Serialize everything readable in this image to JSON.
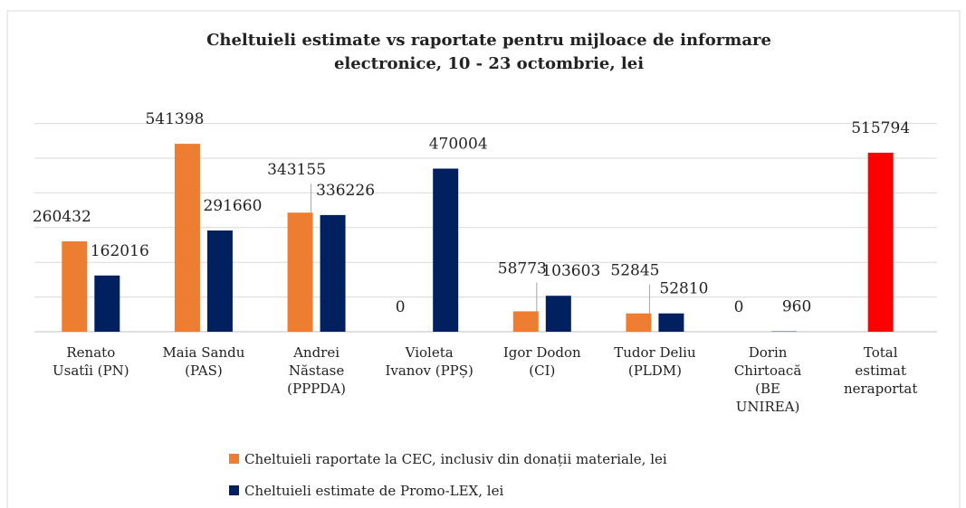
{
  "chart_data": {
    "type": "bar",
    "title": "Cheltuieli estimate vs raportate pentru mijloace de informare\nelectronice, 10 - 23 octombrie, lei",
    "categories": [
      "Renato\nUsatîi (PN)",
      "Maia Sandu\n(PAS)",
      "Andrei\nNăstase\n(PPPDA)",
      "Violeta\nIvanov (PPȘ)",
      "Igor Dodon\n(CI)",
      "Tudor Deliu\n(PLDM)",
      "Dorin\nChirtoacă\n(BE\nUNIREA)",
      "Total\nestimat\nneraportat"
    ],
    "series": [
      {
        "name": "Cheltuieli raportate la CEC, inclusiv din donații materiale, lei",
        "color": "#ED7D31",
        "values": [
          260432,
          541398,
          343155,
          0,
          58773,
          52845,
          0,
          null
        ]
      },
      {
        "name": "Cheltuieli estimate de Promo-LEX, lei",
        "color": "#002060",
        "values": [
          162016,
          291660,
          336226,
          470004,
          103603,
          52810,
          960,
          null
        ]
      }
    ],
    "total": {
      "value": 515794,
      "color": "#FF0000"
    },
    "ylim": [
      0,
      600000
    ],
    "yticks": [
      0,
      100000,
      200000,
      300000,
      400000,
      500000,
      600000
    ],
    "grid": true
  }
}
